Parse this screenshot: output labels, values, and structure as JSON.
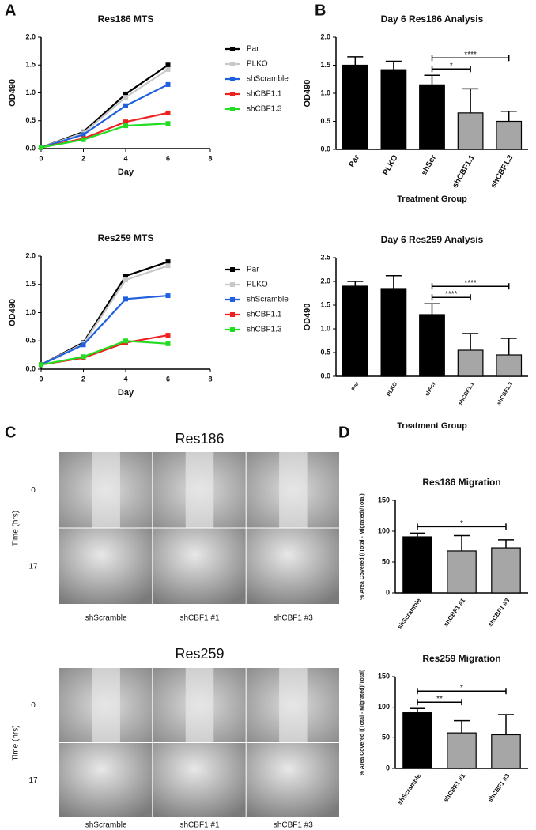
{
  "panel_labels": [
    "A",
    "B",
    "C",
    "D"
  ],
  "chart_data": [
    {
      "type": "line",
      "title": "Res186 MTS",
      "xlabel": "Day",
      "ylabel": "OD490",
      "x": [
        0,
        2,
        4,
        6
      ],
      "xlim": [
        0,
        8
      ],
      "xticks": [
        0,
        2,
        4,
        6,
        8
      ],
      "ylim": [
        0,
        2
      ],
      "yticks": [
        {
          "value": 0,
          "label": "0.0"
        },
        0.5,
        {
          "value": 1,
          "label": "1.0"
        },
        1.5,
        {
          "value": 2,
          "label": "2.0"
        }
      ],
      "series": [
        {
          "name": "Par",
          "color": "#000000",
          "values": [
            0.02,
            0.3,
            0.98,
            1.5
          ]
        },
        {
          "name": "PLKO",
          "color": "#c8c8c8",
          "values": [
            0.02,
            0.28,
            0.92,
            1.42
          ]
        },
        {
          "name": "shScramble",
          "color": "#2060e0",
          "values": [
            0.02,
            0.25,
            0.77,
            1.15
          ]
        },
        {
          "name": "shCBF1.1",
          "color": "#ee2020",
          "values": [
            0.02,
            0.18,
            0.48,
            0.64
          ]
        },
        {
          "name": "shCBF1.3",
          "color": "#22dd22",
          "values": [
            0.02,
            0.16,
            0.41,
            0.45
          ]
        }
      ]
    },
    {
      "type": "bar",
      "title": "Day 6 Res186 Analysis",
      "xlabel": "Treatment Group",
      "ylabel": "OD490",
      "categories": [
        "Par",
        "PLKO",
        "shScr",
        "shCBF1.1",
        "shCBF1.3"
      ],
      "values": [
        1.5,
        1.42,
        1.15,
        0.65,
        0.5
      ],
      "errors": [
        0.15,
        0.15,
        0.17,
        0.43,
        0.18
      ],
      "colors": [
        "#000000",
        "#000000",
        "#000000",
        "#a6a6a6",
        "#a6a6a6"
      ],
      "ylim": [
        0,
        2
      ],
      "yticks": [
        {
          "value": 0,
          "label": "0.0"
        },
        0.5,
        {
          "value": 1,
          "label": "1.0"
        },
        1.5,
        {
          "value": 2,
          "label": "2.0"
        }
      ],
      "annotations": [
        {
          "text": "*",
          "from": 2,
          "to": 3
        },
        {
          "text": "****",
          "from": 2,
          "to": 4
        }
      ]
    },
    {
      "type": "line",
      "title": "Res259 MTS",
      "xlabel": "Day",
      "ylabel": "OD490",
      "x": [
        0,
        2,
        4,
        6
      ],
      "xlim": [
        0,
        8
      ],
      "xticks": [
        0,
        2,
        4,
        6,
        8
      ],
      "ylim": [
        0,
        2
      ],
      "yticks": [
        {
          "value": 0,
          "label": "0.0"
        },
        0.5,
        {
          "value": 1,
          "label": "1.0"
        },
        1.5,
        {
          "value": 2,
          "label": "2.0"
        }
      ],
      "series": [
        {
          "name": "Par",
          "color": "#000000",
          "values": [
            0.08,
            0.47,
            1.65,
            1.9
          ]
        },
        {
          "name": "PLKO",
          "color": "#c8c8c8",
          "values": [
            0.08,
            0.45,
            1.58,
            1.83
          ]
        },
        {
          "name": "shScramble",
          "color": "#2060e0",
          "values": [
            0.08,
            0.43,
            1.24,
            1.3
          ]
        },
        {
          "name": "shCBF1.1",
          "color": "#ee2020",
          "values": [
            0.08,
            0.2,
            0.47,
            0.6
          ]
        },
        {
          "name": "shCBF1.3",
          "color": "#22dd22",
          "values": [
            0.08,
            0.22,
            0.5,
            0.45
          ]
        }
      ]
    },
    {
      "type": "bar",
      "title": "Day 6 Res259 Analysis",
      "xlabel": "Treatment Group",
      "ylabel": "OD490",
      "categories": [
        "Par",
        "PLKO",
        "shScr",
        "shCBF1.1",
        "shCBF1.3"
      ],
      "values": [
        1.9,
        1.85,
        1.3,
        0.55,
        0.45
      ],
      "errors": [
        0.1,
        0.27,
        0.23,
        0.35,
        0.35
      ],
      "colors": [
        "#000000",
        "#000000",
        "#000000",
        "#a6a6a6",
        "#a6a6a6"
      ],
      "ylim": [
        0,
        2.5
      ],
      "yticks": [
        {
          "value": 0,
          "label": "0.0"
        },
        0.5,
        {
          "value": 1,
          "label": "1.0"
        },
        1.5,
        {
          "value": 2,
          "label": "2.0"
        },
        2.5
      ],
      "annotations": [
        {
          "text": "****",
          "from": 2,
          "to": 3
        },
        {
          "text": "****",
          "from": 2,
          "to": 4
        }
      ]
    },
    {
      "type": "bar",
      "title": "Res186 Migration",
      "ylabel": "% Area Covered ((Total - Migrated)/Total)",
      "categories": [
        "shScramble",
        "shCBF1 #1",
        "shCBF1 #3"
      ],
      "values": [
        91,
        68,
        73
      ],
      "errors": [
        6,
        25,
        13
      ],
      "colors": [
        "#000000",
        "#a6a6a6",
        "#a6a6a6"
      ],
      "ylim": [
        0,
        150
      ],
      "yticks": [
        0,
        50,
        100,
        150
      ],
      "annotations": [
        {
          "text": "*",
          "from": 0,
          "to": 2
        }
      ]
    },
    {
      "type": "bar",
      "title": "Res259 Migration",
      "ylabel": "% Area Covered ((Total - Migrated)/Total)",
      "categories": [
        "shScramble",
        "shCBF1 #1",
        "shCBF1 #3"
      ],
      "values": [
        91,
        58,
        55
      ],
      "errors": [
        7,
        20,
        33
      ],
      "colors": [
        "#000000",
        "#a6a6a6",
        "#a6a6a6"
      ],
      "ylim": [
        0,
        150
      ],
      "yticks": [
        0,
        50,
        100,
        150
      ],
      "annotations": [
        {
          "text": "**",
          "from": 0,
          "to": 1
        },
        {
          "text": "*",
          "from": 0,
          "to": 2
        }
      ]
    }
  ],
  "micrographs": [
    {
      "title": "Res186",
      "axis_label": "Time (hrs)",
      "times": [
        "0",
        "17"
      ],
      "conditions": [
        "shScramble",
        "shCBF1 #1",
        "shCBF1 #3"
      ]
    },
    {
      "title": "Res259",
      "axis_label": "Time (hrs)",
      "times": [
        "0",
        "17"
      ],
      "conditions": [
        "shScramble",
        "shCBF1 #1",
        "shCBF1 #3"
      ]
    }
  ]
}
